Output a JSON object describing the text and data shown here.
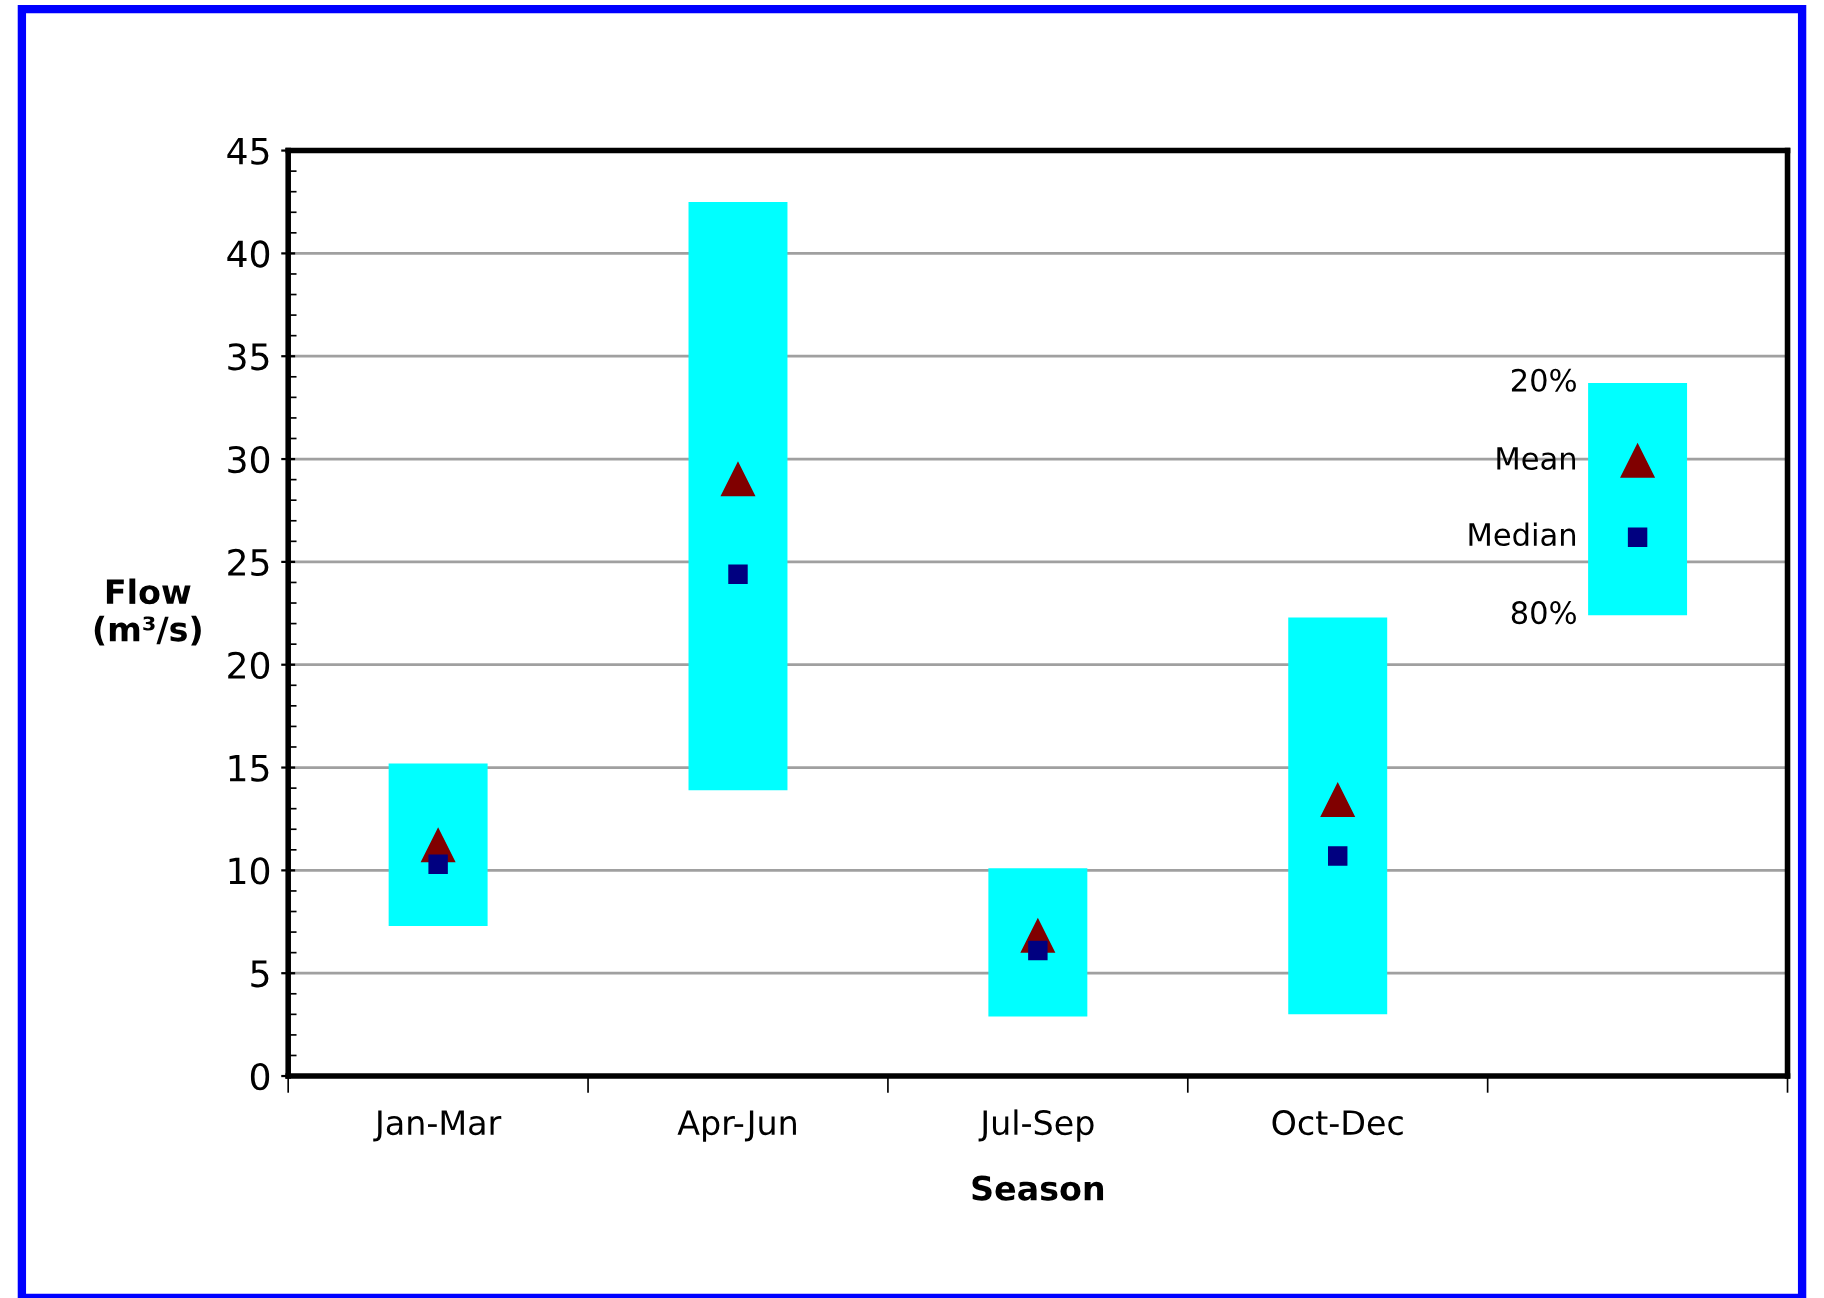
{
  "chart_data": {
    "type": "bar",
    "xlabel": "Season",
    "ylabel": "Flow\n(m³/s)",
    "categories": [
      "Jan-Mar",
      "Apr-Jun",
      "Jul-Sep",
      "Oct-Dec",
      null
    ],
    "series": [
      {
        "color": "#00ffff",
        "base": [
          7.3,
          13.9,
          2.9,
          3.0,
          22.4
        ],
        "values": [
          7.9,
          28.6,
          7.2,
          19.3,
          11.3
        ]
      },
      {
        "type": "scatter",
        "name": "Mean",
        "marker": "triangle",
        "color": "#800000",
        "values": [
          11.2,
          29.0,
          6.8,
          13.4,
          29.9
        ]
      },
      {
        "type": "scatter",
        "name": "Median",
        "marker": "square",
        "color": "#000080",
        "values": [
          10.3,
          24.4,
          6.1,
          10.7,
          26.2
        ]
      }
    ],
    "annotations": [
      "20%",
      "80%"
    ],
    "ylim": [
      0,
      45
    ],
    "yticks": [
      0,
      5,
      10,
      15,
      20,
      25,
      30,
      35,
      40,
      45
    ],
    "grid": "y",
    "legend": false
  }
}
